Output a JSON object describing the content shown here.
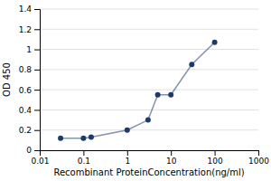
{
  "chart_data": {
    "type": "line",
    "xlabel": "Recombinant ProteinConcentration(ng/ml)",
    "ylabel": "OD 450",
    "x": [
      0.03,
      0.1,
      0.15,
      1.0,
      3.0,
      5.0,
      10.0,
      30.0,
      100.0
    ],
    "values": [
      0.12,
      0.12,
      0.13,
      0.2,
      0.3,
      0.55,
      0.55,
      0.85,
      1.07
    ],
    "color": "#1c3a6b",
    "marker": "circle",
    "log": "x",
    "xlim": [
      0.01,
      1000
    ],
    "ylim": [
      0,
      1.4
    ],
    "xticks": [
      0.01,
      0.1,
      1,
      10,
      100,
      1000
    ],
    "yticks": [
      0,
      0.2,
      0.4,
      0.6,
      0.8,
      1,
      1.2,
      1.4
    ],
    "grid": true
  }
}
